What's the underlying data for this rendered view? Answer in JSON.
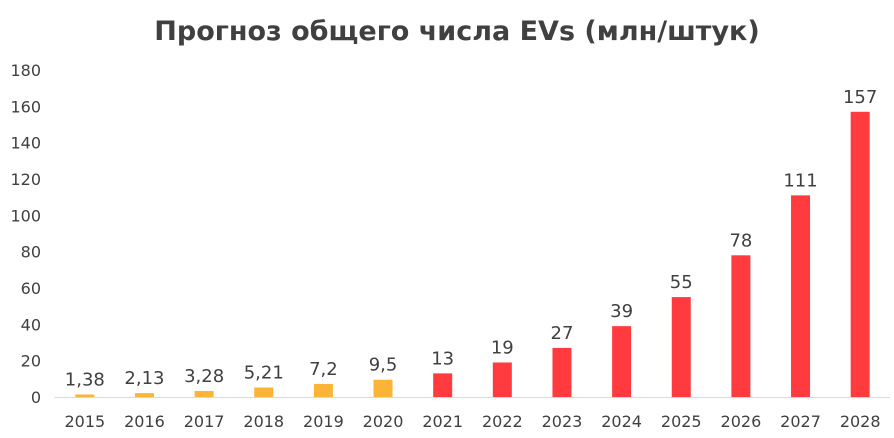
{
  "chart_data": {
    "type": "bar",
    "title": "Прогноз общего числа EVs (млн/штук)",
    "xlabel": "",
    "ylabel": "",
    "ylim": [
      0,
      180
    ],
    "yticks": [
      0,
      20,
      40,
      60,
      80,
      100,
      120,
      140,
      160,
      180
    ],
    "grid": false,
    "legend": "none",
    "categories": [
      "2015",
      "2016",
      "2017",
      "2018",
      "2019",
      "2020",
      "2021",
      "2022",
      "2023",
      "2024",
      "2025",
      "2026",
      "2027",
      "2028"
    ],
    "values": [
      1.38,
      2.13,
      3.28,
      5.21,
      7.2,
      9.5,
      13,
      19,
      27,
      39,
      55,
      78,
      111,
      157
    ],
    "data_labels": [
      "1,38",
      "2,13",
      "3,28",
      "5,21",
      "7,2",
      "9,5",
      "13",
      "19",
      "27",
      "39",
      "55",
      "78",
      "111",
      "157"
    ],
    "bar_colors": [
      "#FBB437",
      "#FBB437",
      "#FBB437",
      "#FBB437",
      "#FBB437",
      "#FBB437",
      "#FF3B3F",
      "#FF3B3F",
      "#FF3B3F",
      "#FF3B3F",
      "#FF3B3F",
      "#FF3B3F",
      "#FF3B3F",
      "#FF3B3F"
    ],
    "axis_color": "#D9D9D9",
    "text_color": "#404040"
  }
}
